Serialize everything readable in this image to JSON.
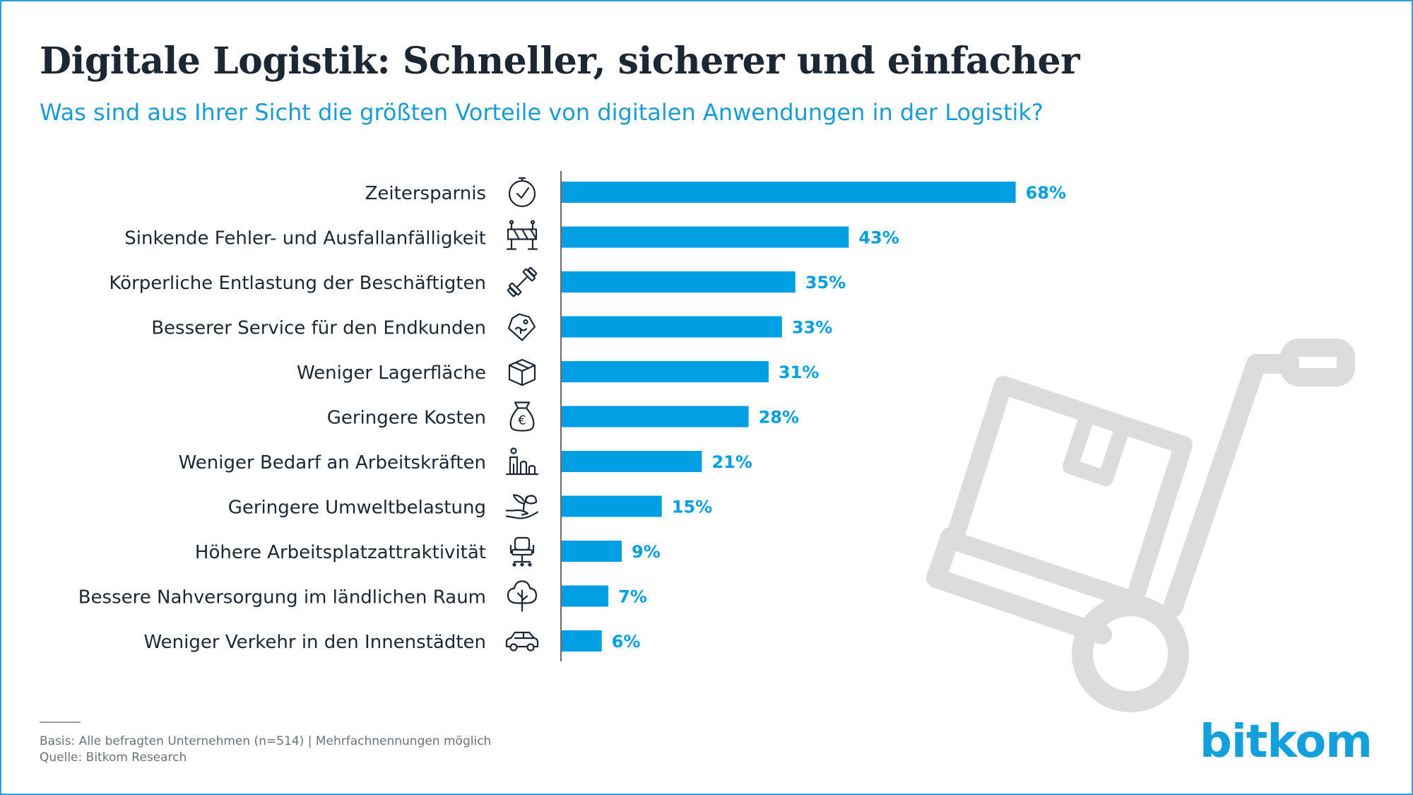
{
  "title": "Digitale Logistik: Schneller, sicherer und einfacher",
  "subtitle": "Was sind aus Ihrer Sicht die größten Vorteile von digitalen Anwendungen in der Logistik?",
  "chart_data": {
    "type": "bar",
    "orientation": "horizontal",
    "title": "Digitale Logistik: Schneller, sicherer und einfacher",
    "subtitle": "Was sind aus Ihrer Sicht die größten Vorteile von digitalen Anwendungen in der Logistik?",
    "unit": "%",
    "xlim": [
      0,
      100
    ],
    "grid": false,
    "bar_color": "#009fe3",
    "label_color": "#009fe3",
    "categories": [
      "Zeitersparnis",
      "Sinkende Fehler- und Ausfallanfälligkeit",
      "Körperliche Entlastung der Beschäftigten",
      "Besserer Service für den Endkunden",
      "Weniger Lagerfläche",
      "Geringere Kosten",
      "Weniger Bedarf an Arbeitskräften",
      "Geringere Umweltbelastung",
      "Höhere Arbeitsplatzattraktivität",
      "Bessere Nahversorgung im ländlichen Raum",
      "Weniger Verkehr in den Innenstädten"
    ],
    "values": [
      68,
      43,
      35,
      33,
      31,
      28,
      21,
      15,
      9,
      7,
      6
    ],
    "value_labels": [
      "68%",
      "43%",
      "35%",
      "33%",
      "31%",
      "28%",
      "21%",
      "15%",
      "9%",
      "7%",
      "6%"
    ],
    "icons": [
      "stopwatch-icon",
      "barrier-icon",
      "dumbbell-icon",
      "service-tag-icon",
      "box-icon",
      "money-bag-icon",
      "workforce-icon",
      "plant-hand-icon",
      "office-chair-icon",
      "tree-icon",
      "car-icon"
    ]
  },
  "footer": {
    "basis": "Basis: Alle befragten Unternehmen (n=514) | Mehrfachnennungen möglich",
    "source": "Quelle: Bitkom Research"
  },
  "logo": {
    "text": "bitkom",
    "color": "#14a0dc"
  },
  "colors": {
    "title": "#1c2733",
    "subtitle": "#189bd6",
    "axis": "#6b6b6b",
    "watermark": "#dcdcdc"
  }
}
